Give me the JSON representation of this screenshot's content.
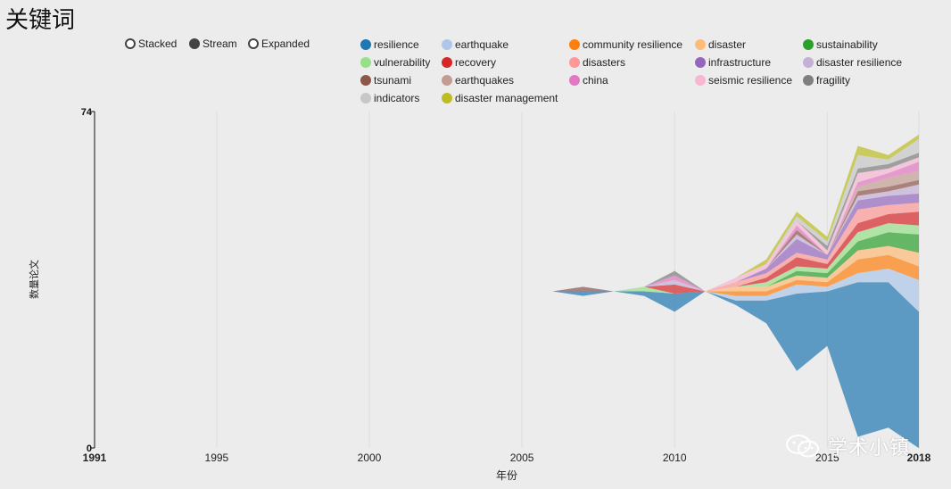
{
  "title": "关键词",
  "modes": [
    {
      "label": "Stacked",
      "selected": false
    },
    {
      "label": "Stream",
      "selected": true
    },
    {
      "label": "Expanded",
      "selected": false
    }
  ],
  "watermark": "学术小镇",
  "chart_data": {
    "type": "area",
    "style": "streamgraph",
    "xlabel": "年份",
    "ylabel": "数量论文",
    "xlim": [
      1991,
      2018
    ],
    "ylim": [
      0,
      74
    ],
    "y_ticks": [
      "0",
      "74"
    ],
    "x_ticks": [
      {
        "value": 1991,
        "label": "1991",
        "bold": true
      },
      {
        "value": 1995,
        "label": "1995",
        "bold": false
      },
      {
        "value": 2000,
        "label": "2000",
        "bold": false
      },
      {
        "value": 2005,
        "label": "2005",
        "bold": false
      },
      {
        "value": 2010,
        "label": "2010",
        "bold": false
      },
      {
        "value": 2015,
        "label": "2015",
        "bold": false
      },
      {
        "value": 2018,
        "label": "2018",
        "bold": true
      }
    ],
    "x": [
      2006,
      2007,
      2008,
      2009,
      2010,
      2011,
      2012,
      2013,
      2014,
      2015,
      2016,
      2017,
      2018
    ],
    "series": [
      {
        "name": "resilience",
        "color": "#1f77b4",
        "values": [
          0,
          1,
          0,
          1,
          4,
          0,
          1,
          5,
          17,
          12,
          34,
          32,
          30
        ]
      },
      {
        "name": "earthquake",
        "color": "#aec7e8",
        "values": [
          0,
          0,
          0,
          0,
          0,
          0,
          1,
          1,
          2,
          1,
          2,
          3,
          7
        ]
      },
      {
        "name": "community resilience",
        "color": "#ff7f0e",
        "values": [
          0,
          0,
          0,
          0,
          0,
          0,
          1,
          1,
          1,
          1,
          3,
          3,
          3
        ]
      },
      {
        "name": "disaster",
        "color": "#ffbb78",
        "values": [
          0,
          0,
          0,
          0,
          0,
          0,
          1,
          1,
          1,
          1,
          2,
          2,
          3
        ]
      },
      {
        "name": "sustainability",
        "color": "#2ca02c",
        "values": [
          0,
          0,
          0,
          0,
          0,
          0,
          0,
          0,
          1,
          1,
          2,
          3,
          4
        ]
      },
      {
        "name": "vulnerability",
        "color": "#98df8a",
        "values": [
          0,
          0,
          0,
          1,
          0,
          0,
          0,
          1,
          1,
          1,
          2,
          2,
          2
        ]
      },
      {
        "name": "recovery",
        "color": "#d62728",
        "values": [
          0,
          0,
          0,
          0,
          2,
          0,
          0,
          1,
          2,
          1,
          2,
          2,
          3
        ]
      },
      {
        "name": "disasters",
        "color": "#ff9896",
        "values": [
          0,
          0,
          0,
          0,
          0,
          0,
          1,
          1,
          1,
          1,
          3,
          2,
          2
        ]
      },
      {
        "name": "infrastructure",
        "color": "#9467bd",
        "values": [
          0,
          0,
          0,
          0,
          0,
          0,
          0,
          1,
          3,
          1,
          2,
          2,
          2
        ]
      },
      {
        "name": "disaster resilience",
        "color": "#c5b0d5",
        "values": [
          0,
          0,
          0,
          0,
          1,
          0,
          0,
          0,
          1,
          0,
          1,
          1,
          2
        ]
      },
      {
        "name": "tsunami",
        "color": "#8c564b",
        "values": [
          0,
          1,
          0,
          0,
          0,
          0,
          0,
          0,
          1,
          0,
          1,
          1,
          1
        ]
      },
      {
        "name": "earthquakes",
        "color": "#c49c94",
        "values": [
          0,
          0,
          0,
          0,
          0,
          0,
          0,
          0,
          0,
          0,
          1,
          2,
          2
        ]
      },
      {
        "name": "china",
        "color": "#e377c2",
        "values": [
          0,
          0,
          0,
          0,
          1,
          0,
          0,
          0,
          1,
          0,
          1,
          1,
          2
        ]
      },
      {
        "name": "seismic resilience",
        "color": "#f7b6d2",
        "values": [
          0,
          0,
          0,
          0,
          0,
          0,
          1,
          1,
          1,
          1,
          2,
          1,
          1
        ]
      },
      {
        "name": "fragility",
        "color": "#7f7f7f",
        "values": [
          0,
          0,
          0,
          0,
          1,
          0,
          0,
          0,
          0,
          1,
          1,
          1,
          1
        ]
      },
      {
        "name": "indicators",
        "color": "#c7c7c7",
        "values": [
          0,
          0,
          0,
          0,
          0,
          0,
          0,
          0,
          1,
          1,
          3,
          1,
          3
        ]
      },
      {
        "name": "disaster management",
        "color": "#bcbd22",
        "values": [
          0,
          0,
          0,
          0,
          0,
          0,
          0,
          1,
          1,
          1,
          2,
          1,
          1
        ]
      }
    ]
  }
}
